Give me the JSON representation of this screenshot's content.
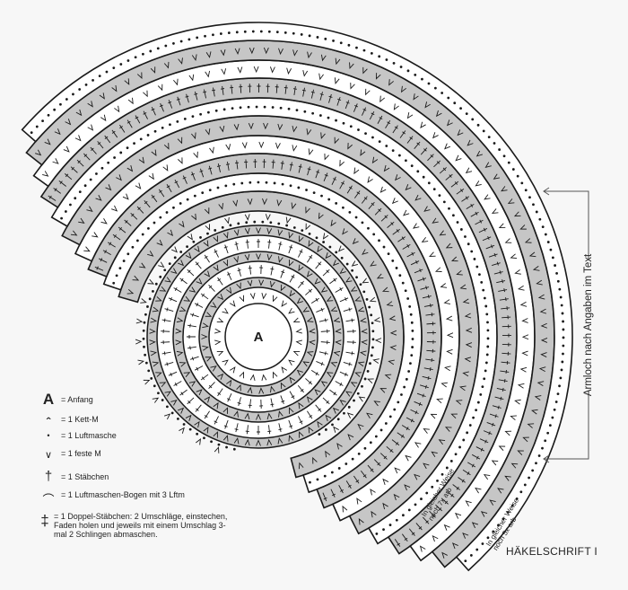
{
  "center_label": "A",
  "legend": [
    {
      "symbol": "A",
      "icon": "start-letter",
      "text": "= Anfang"
    },
    {
      "symbol": "ˆ",
      "icon": "slip-stitch-icon",
      "text": "= 1 Kett-M"
    },
    {
      "symbol": "•",
      "icon": "chain-stitch-icon",
      "text": "= 1 Luftmasche"
    },
    {
      "symbol": "∨",
      "icon": "single-crochet-icon",
      "text": "= 1 feste M"
    },
    {
      "symbol": "†",
      "icon": "double-crochet-icon",
      "text": "= 1 Stäbchen"
    },
    {
      "symbol": "⌒",
      "icon": "chain-arch-icon",
      "text": "= 1 Luftmaschen-Bogen mit 3 Lftm"
    },
    {
      "symbol": "‡",
      "icon": "treble-crochet-icon",
      "text": "= 1 Doppel-Stäbchen: 2 Umschläge, einstechen, Faden holen und jeweils mit einem Umschlag 3-mal 2 Schlingen abmaschen."
    }
  ],
  "side_label": "Armloch nach Angaben im Text",
  "repeat_notes": [
    {
      "line1": "In gleicher Weise",
      "line2": "noch 7x arb"
    },
    {
      "line1": "In gleicher Weise",
      "line2": "noch 5x arb"
    }
  ],
  "title": "HÄKELSCHRIFT I",
  "colors": {
    "band_gray": "#c6c6c6",
    "ink": "#1a1a1a",
    "background": "#f7f7f7"
  }
}
